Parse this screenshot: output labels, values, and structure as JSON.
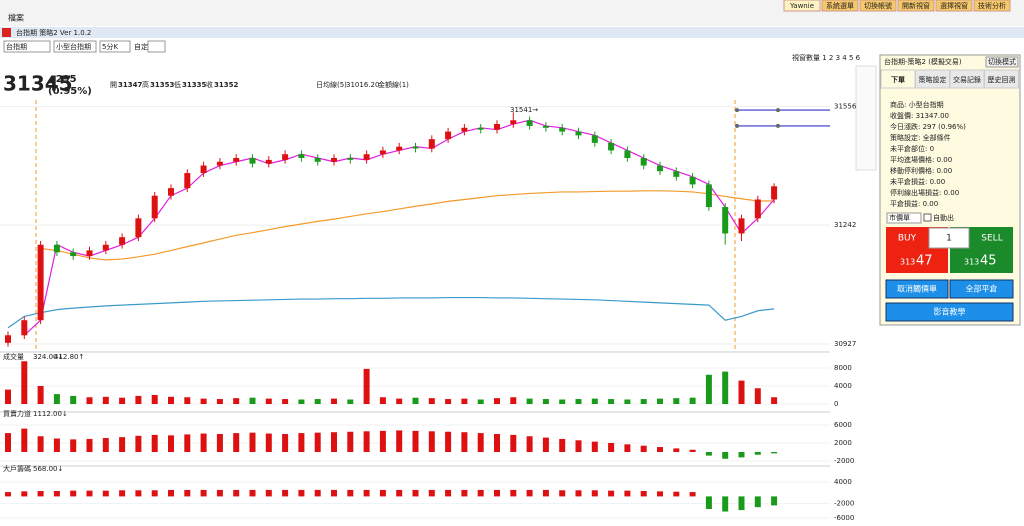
{
  "app": {
    "menu": "檔案",
    "top_buttons": [
      "Yawnie",
      "系統選單",
      "切換帳號",
      "開新視窗",
      "選擇視窗",
      "技術分析"
    ],
    "window_title": "台指期 策略2 Ver 1.0.2",
    "selects": [
      "台指期",
      "小型台指期",
      "5分K"
    ],
    "custom": "自定:",
    "window_count": "視窗數量 1 2 3 4 5 6"
  },
  "quote": {
    "price": "31345",
    "change": "▲295",
    "pct": "(0.95%)",
    "ohlc": [
      [
        "開",
        "31347"
      ],
      [
        "高",
        "31353"
      ],
      [
        "低",
        "31335"
      ],
      [
        "收",
        "31352"
      ]
    ],
    "ma_label": "日均線(5)",
    "ma_value": "31016.20",
    "amount_label": "金額線(1)",
    "annotation": "31541→"
  },
  "chart_data": {
    "type": "candlestick",
    "ylim": [
      30911,
      31693
    ],
    "yticks": [
      30927,
      31242,
      31556
    ],
    "levels": [
      31547,
      31505
    ],
    "candles": [
      [
        30930,
        30960,
        30920,
        30950
      ],
      [
        30950,
        31000,
        30940,
        30990
      ],
      [
        30990,
        31200,
        30980,
        31190
      ],
      [
        31190,
        31200,
        31160,
        31170
      ],
      [
        31170,
        31180,
        31150,
        31160
      ],
      [
        31160,
        31185,
        31150,
        31175
      ],
      [
        31175,
        31200,
        31165,
        31190
      ],
      [
        31190,
        31220,
        31180,
        31210
      ],
      [
        31210,
        31270,
        31200,
        31260
      ],
      [
        31260,
        31330,
        31250,
        31320
      ],
      [
        31320,
        31350,
        31310,
        31340
      ],
      [
        31340,
        31390,
        31330,
        31380
      ],
      [
        31380,
        31410,
        31370,
        31400
      ],
      [
        31400,
        31420,
        31390,
        31410
      ],
      [
        31410,
        31430,
        31400,
        31420
      ],
      [
        31420,
        31430,
        31395,
        31405
      ],
      [
        31405,
        31425,
        31395,
        31415
      ],
      [
        31415,
        31440,
        31405,
        31430
      ],
      [
        31430,
        31440,
        31410,
        31420
      ],
      [
        31420,
        31430,
        31400,
        31410
      ],
      [
        31410,
        31430,
        31400,
        31420
      ],
      [
        31420,
        31430,
        31405,
        31415
      ],
      [
        31415,
        31440,
        31405,
        31430
      ],
      [
        31430,
        31450,
        31420,
        31440
      ],
      [
        31440,
        31460,
        31430,
        31450
      ],
      [
        31450,
        31460,
        31435,
        31445
      ],
      [
        31445,
        31480,
        31435,
        31470
      ],
      [
        31470,
        31500,
        31460,
        31490
      ],
      [
        31490,
        31510,
        31480,
        31500
      ],
      [
        31500,
        31510,
        31485,
        31495
      ],
      [
        31495,
        31520,
        31485,
        31510
      ],
      [
        31510,
        31541,
        31500,
        31520
      ],
      [
        31520,
        31530,
        31495,
        31505
      ],
      [
        31505,
        31515,
        31490,
        31500
      ],
      [
        31500,
        31510,
        31480,
        31490
      ],
      [
        31490,
        31500,
        31470,
        31480
      ],
      [
        31480,
        31490,
        31450,
        31460
      ],
      [
        31460,
        31470,
        31430,
        31440
      ],
      [
        31440,
        31450,
        31410,
        31420
      ],
      [
        31420,
        31430,
        31390,
        31400
      ],
      [
        31400,
        31410,
        31375,
        31385
      ],
      [
        31385,
        31395,
        31360,
        31370
      ],
      [
        31370,
        31380,
        31340,
        31350
      ],
      [
        31350,
        31360,
        31280,
        31290
      ],
      [
        31290,
        31300,
        31190,
        31220
      ],
      [
        31220,
        31270,
        31200,
        31260
      ],
      [
        31260,
        31320,
        31250,
        31310
      ],
      [
        31310,
        31353,
        31300,
        31345
      ]
    ],
    "ma": [
      null,
      null,
      31180,
      31175,
      31165,
      31155,
      31150,
      31152,
      31158,
      31165,
      31175,
      31185,
      31195,
      31205,
      31215,
      31222,
      31230,
      31238,
      31245,
      31252,
      31258,
      31265,
      31272,
      31278,
      31285,
      31292,
      31298,
      31305,
      31310,
      31315,
      31320,
      31323,
      31326,
      31328,
      31330,
      31330,
      31331,
      31332,
      31332,
      31333,
      31333,
      31332,
      31330,
      31325,
      31318,
      31312,
      31306,
      31306
    ],
    "step": [
      null,
      30950,
      30990,
      31190,
      31170,
      31160,
      31175,
      31190,
      31210,
      31260,
      31320,
      31340,
      31380,
      31400,
      31410,
      31420,
      31405,
      31415,
      31430,
      31420,
      31410,
      31420,
      31415,
      31430,
      31440,
      31450,
      31445,
      31470,
      31490,
      31500,
      31495,
      31510,
      31520,
      31505,
      31500,
      31490,
      31480,
      31460,
      31440,
      31420,
      31400,
      31385,
      31370,
      31350,
      31290,
      31220,
      31260,
      31310
    ],
    "avg": [
      30970,
      31000,
      31010,
      31018,
      31022,
      31025,
      31028,
      31030,
      31032,
      31034,
      31036,
      31038,
      31040,
      31041,
      31042,
      31043,
      31044,
      31045,
      31046,
      31046,
      31047,
      31047,
      31048,
      31048,
      31049,
      31049,
      31049,
      31050,
      31050,
      31050,
      31049,
      31049,
      31048,
      31047,
      31046,
      31045,
      31044,
      31042,
      31040,
      31038,
      31036,
      31034,
      31032,
      31030,
      30990,
      31000,
      31015,
      31020
    ],
    "volume": {
      "label": "成交量",
      "v1": "324.00↓",
      "v2": "412.80↑",
      "ylim": [
        0,
        10667
      ],
      "yticks": [
        0,
        4000,
        8000
      ],
      "values": [
        3200,
        9500,
        4000,
        2200,
        1800,
        1500,
        1600,
        1400,
        1800,
        2000,
        1600,
        1500,
        1200,
        1100,
        1300,
        1400,
        1200,
        1100,
        1000,
        1100,
        1200,
        1000,
        7800,
        1500,
        1200,
        1400,
        1300,
        1100,
        1200,
        1000,
        1300,
        1500,
        1200,
        1100,
        1000,
        1100,
        1200,
        1100,
        1000,
        1100,
        1200,
        1300,
        1400,
        6500,
        7200,
        5200,
        3500,
        1500
      ]
    },
    "power": {
      "label": "買賣力道",
      "v1": "1112.00↓",
      "ylim": [
        -3111,
        7556
      ],
      "yticks": [
        -2000,
        2000,
        6000
      ],
      "values": [
        4200,
        5200,
        3500,
        3000,
        2800,
        2900,
        3100,
        3300,
        3600,
        3800,
        3700,
        3900,
        4100,
        4000,
        4200,
        4300,
        4100,
        4000,
        4200,
        4300,
        4400,
        4500,
        4600,
        4700,
        4800,
        4700,
        4600,
        4500,
        4400,
        4200,
        4000,
        3800,
        3500,
        3200,
        2900,
        2600,
        2300,
        2000,
        1700,
        1400,
        1100,
        800,
        500,
        -800,
        -1500,
        -1200,
        -600,
        -300
      ]
    },
    "big": {
      "label": "大戶籌碼",
      "v1": "568.00↓",
      "ylim": [
        -7111,
        7333
      ],
      "yticks": [
        -6000,
        -2000,
        4000
      ],
      "values": [
        1200,
        1400,
        1500,
        1500,
        1600,
        1600,
        1600,
        1700,
        1700,
        1700,
        1800,
        1800,
        1800,
        1800,
        1800,
        1800,
        1800,
        1800,
        1800,
        1800,
        1800,
        1800,
        1800,
        1800,
        1800,
        1800,
        1800,
        1800,
        1800,
        1800,
        1800,
        1800,
        1800,
        1800,
        1700,
        1700,
        1700,
        1600,
        1600,
        1500,
        1400,
        1300,
        1200,
        -3500,
        -4200,
        -3800,
        -3000,
        -2500
      ]
    }
  },
  "panel": {
    "title": "台指期-策略2 (模擬交易)",
    "mode": "切換模式",
    "tabs": [
      "下單",
      "策略設定",
      "交易記錄",
      "歷史回測"
    ],
    "info": [
      "商品: 小型台指期",
      "收盤價: 31347.00",
      "今日漲跌: 297 (0.96%)",
      "策略設定: 全部條件",
      "未平倉部位: 0",
      "平均進場價格: 0.00",
      "移動停利價格: 0.00",
      "未平倉損益: 0.00",
      "停利線出場損益: 0.00",
      "平倉損益: 0.00"
    ],
    "order_type": "市價單",
    "auto_exit": "自動出",
    "buy": "BUY",
    "qty": "1",
    "sell": "SELL",
    "buy_price": [
      "313",
      "47"
    ],
    "sell_price": [
      "313",
      "45"
    ],
    "cancel": "取消觸價單",
    "close_all": "全部平倉",
    "video": "影音教學"
  }
}
